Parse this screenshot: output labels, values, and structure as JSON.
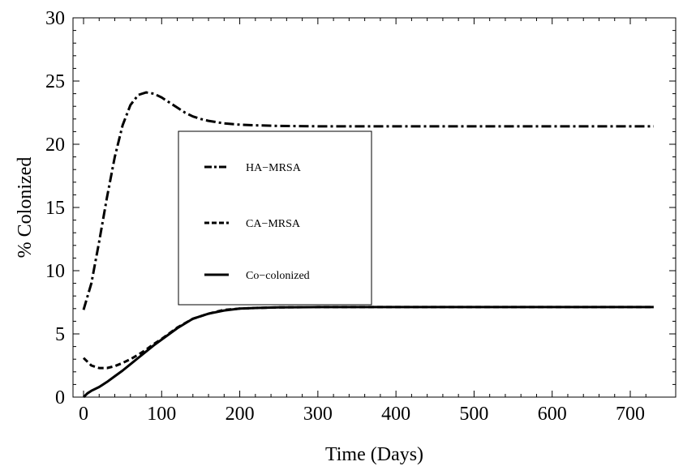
{
  "chart_data": {
    "type": "line",
    "title": "",
    "xlabel": "Time (Days)",
    "ylabel": "% Colonized",
    "xlim": [
      0,
      730
    ],
    "ylim": [
      0,
      30
    ],
    "xticks": [
      0,
      100,
      200,
      300,
      400,
      500,
      600,
      700
    ],
    "yticks": [
      0,
      5,
      10,
      15,
      20,
      25,
      30
    ],
    "grid": false,
    "legend_position": "center-left",
    "series": [
      {
        "name": "HA−MRSA",
        "style": "dash-dot",
        "color": "#000000",
        "x": [
          0,
          10,
          20,
          30,
          40,
          50,
          60,
          70,
          80,
          90,
          100,
          110,
          120,
          130,
          140,
          150,
          160,
          180,
          200,
          220,
          250,
          300,
          350,
          400,
          500,
          600,
          700,
          730
        ],
        "y": [
          6.9,
          9.0,
          12.3,
          15.8,
          19.0,
          21.5,
          23.1,
          23.9,
          24.1,
          24.0,
          23.7,
          23.3,
          22.9,
          22.5,
          22.2,
          22.0,
          21.85,
          21.65,
          21.55,
          21.5,
          21.45,
          21.42,
          21.42,
          21.42,
          21.42,
          21.42,
          21.42,
          21.42
        ]
      },
      {
        "name": "CA−MRSA",
        "style": "dashed",
        "color": "#000000",
        "x": [
          0,
          10,
          20,
          30,
          40,
          50,
          60,
          70,
          80,
          90,
          100,
          120,
          140,
          160,
          180,
          200,
          220,
          250,
          300,
          400,
          500,
          600,
          700,
          730
        ],
        "y": [
          3.1,
          2.5,
          2.3,
          2.3,
          2.45,
          2.7,
          3.0,
          3.35,
          3.75,
          4.2,
          4.6,
          5.5,
          6.2,
          6.6,
          6.9,
          7.0,
          7.05,
          7.1,
          7.12,
          7.12,
          7.12,
          7.12,
          7.12,
          7.12
        ]
      },
      {
        "name": "Co−colonized",
        "style": "solid",
        "color": "#000000",
        "x": [
          0,
          5,
          10,
          20,
          30,
          40,
          50,
          60,
          70,
          80,
          90,
          100,
          120,
          140,
          160,
          180,
          200,
          220,
          250,
          300,
          400,
          500,
          600,
          700,
          730
        ],
        "y": [
          0.0,
          0.3,
          0.5,
          0.8,
          1.2,
          1.65,
          2.1,
          2.6,
          3.1,
          3.6,
          4.1,
          4.55,
          5.45,
          6.2,
          6.6,
          6.85,
          7.0,
          7.05,
          7.1,
          7.12,
          7.12,
          7.12,
          7.12,
          7.12,
          7.12
        ]
      }
    ]
  }
}
